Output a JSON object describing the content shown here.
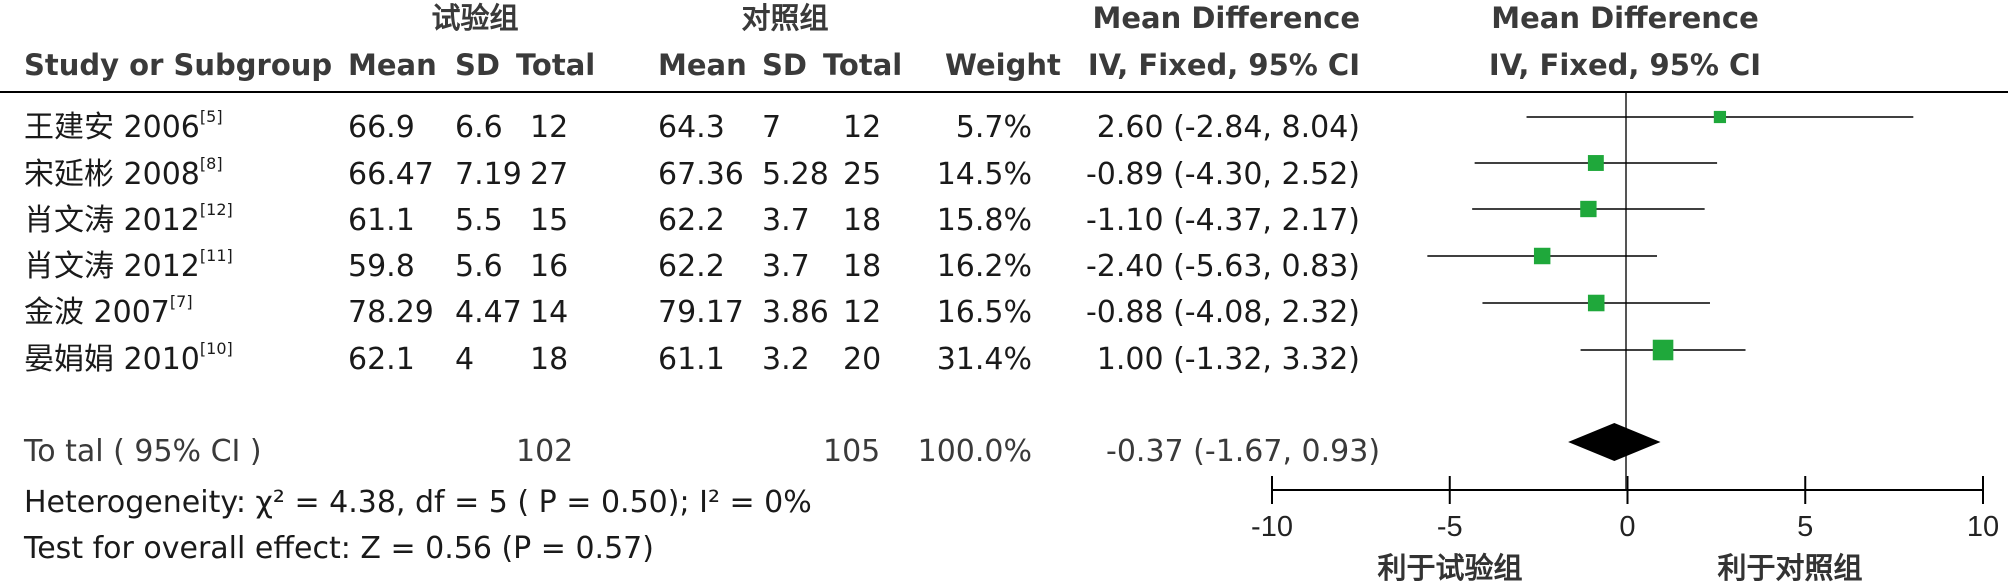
{
  "header": {
    "group_experimental": "试验组",
    "group_control": "对照组",
    "md_title_left": "Mean Difference",
    "md_title_right": "Mean Difference",
    "col_study": "Study or Subgroup",
    "col_mean": "Mean",
    "col_sd": "SD",
    "col_total": "Total",
    "col_weight": "Weight",
    "ci_label_left": "IV, Fixed, 95% CI",
    "ci_label_right": "IV, Fixed, 95% CI"
  },
  "studies": [
    {
      "name": "王建安 2006",
      "ref": "[5]",
      "exp_mean": "66.9",
      "exp_sd": "6.6",
      "exp_total": "12",
      "ctl_mean": "64.3",
      "ctl_sd": "7",
      "ctl_total": "12",
      "weight": "5.7%",
      "ci_text": "2.60 (-2.84, 8.04)"
    },
    {
      "name": "宋延彬 2008",
      "ref": "[8]",
      "exp_mean": "66.47",
      "exp_sd": "7.19",
      "exp_total": "27",
      "ctl_mean": "67.36",
      "ctl_sd": "5.28",
      "ctl_total": "25",
      "weight": "14.5%",
      "ci_text": "-0.89 (-4.30, 2.52)"
    },
    {
      "name": "肖文涛 2012",
      "ref": "[12]",
      "exp_mean": "61.1",
      "exp_sd": "5.5",
      "exp_total": "15",
      "ctl_mean": "62.2",
      "ctl_sd": "3.7",
      "ctl_total": "18",
      "weight": "15.8%",
      "ci_text": "-1.10 (-4.37, 2.17)"
    },
    {
      "name": "肖文涛 2012",
      "ref": "[11]",
      "exp_mean": "59.8",
      "exp_sd": "5.6",
      "exp_total": "16",
      "ctl_mean": "62.2",
      "ctl_sd": "3.7",
      "ctl_total": "18",
      "weight": "16.2%",
      "ci_text": "-2.40 (-5.63, 0.83)"
    },
    {
      "name": "金波 2007",
      "ref": "[7]",
      "exp_mean": "78.29",
      "exp_sd": "4.47",
      "exp_total": "14",
      "ctl_mean": "79.17",
      "ctl_sd": "3.86",
      "ctl_total": "12",
      "weight": "16.5%",
      "ci_text": "-0.88 (-4.08, 2.32)"
    },
    {
      "name": "晏娟娟 2010",
      "ref": "[10]",
      "exp_mean": "62.1",
      "exp_sd": "4",
      "exp_total": "18",
      "ctl_mean": "61.1",
      "ctl_sd": "3.2",
      "ctl_total": "20",
      "weight": "31.4%",
      "ci_text": "1.00 (-1.32, 3.32)"
    }
  ],
  "total": {
    "label": "To tal ( 95% CI )",
    "exp_total": "102",
    "ctl_total": "105",
    "weight": "100.0%",
    "ci_text": "-0.37 (-1.67, 0.93)"
  },
  "footer": {
    "heterogeneity": "Heterogeneity:  χ² = 4.38, df = 5 (  P = 0.50); I² = 0%",
    "overall_effect": "Test for overall effect: Z = 0.56 (P = 0.57)"
  },
  "axis": {
    "favours_left": "利于试验组",
    "favours_right": "利于对照组"
  },
  "colors": {
    "marker": "#1fa83b",
    "diamond": "#000000",
    "line": "#000000"
  },
  "chart_data": {
    "type": "scatter",
    "subtype": "forest-plot",
    "xlim": [
      -10,
      10
    ],
    "xticks": [
      -10,
      -5,
      0,
      5,
      10
    ],
    "tick_labels": [
      "-10",
      "-5",
      "0",
      "5",
      "10"
    ],
    "studies": [
      {
        "md": 2.6,
        "lo": -2.84,
        "hi": 8.04,
        "weight": 5.7
      },
      {
        "md": -0.89,
        "lo": -4.3,
        "hi": 2.52,
        "weight": 14.5
      },
      {
        "md": -1.1,
        "lo": -4.37,
        "hi": 2.17,
        "weight": 15.8
      },
      {
        "md": -2.4,
        "lo": -5.63,
        "hi": 0.83,
        "weight": 16.2
      },
      {
        "md": -0.88,
        "lo": -4.08,
        "hi": 2.32,
        "weight": 16.5
      },
      {
        "md": 1.0,
        "lo": -1.32,
        "hi": 3.32,
        "weight": 31.4
      }
    ],
    "pooled": {
      "md": -0.37,
      "lo": -1.67,
      "hi": 0.93
    }
  }
}
